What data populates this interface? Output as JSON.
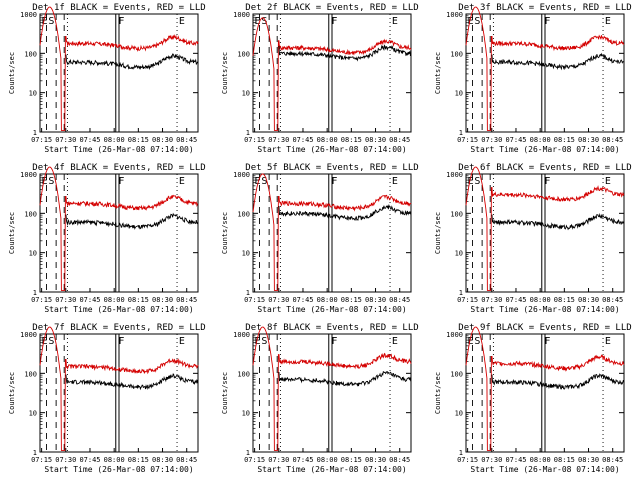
{
  "common": {
    "ylabel": "Counts/sec",
    "xlabel": "Start Time (26-Mar-08 07:14:00)",
    "title_suffix": "BLACK = Events, RED = LLD",
    "x_tick_labels": [
      "07:15",
      "07:30",
      "07:45",
      "08:00",
      "08:15",
      "08:30",
      "08:45"
    ],
    "y_tick_labels": [
      "1",
      "10",
      "100",
      "1000"
    ],
    "marker_labels": [
      "E",
      "S",
      "F",
      "E"
    ],
    "colors": {
      "events": "#000000",
      "lld": "#d40000",
      "axes": "#000000"
    }
  },
  "chart_data": [
    {
      "type": "line",
      "title": "Det 1f BLACK = Events, RED = LLD",
      "xlabel": "Start Time (26-Mar-08 07:14:00)",
      "ylabel": "Counts/sec",
      "x_range_minutes": [
        0,
        98
      ],
      "y_scale": "log",
      "ylim": [
        1,
        1000
      ],
      "series": [
        {
          "name": "BLACK = Events",
          "level": 60,
          "peak": 0
        },
        {
          "name": "RED = LLD",
          "level": 180,
          "peak": 1500
        }
      ]
    },
    {
      "type": "line",
      "title": "Det 2f BLACK = Events, RED = LLD",
      "xlabel": "Start Time (26-Mar-08 07:14:00)",
      "ylabel": "Counts/sec",
      "x_range_minutes": [
        0,
        98
      ],
      "y_scale": "log",
      "ylim": [
        1,
        1000
      ],
      "series": [
        {
          "name": "BLACK = Events",
          "level": 100,
          "peak": 0
        },
        {
          "name": "RED = LLD",
          "level": 140,
          "peak": 800
        }
      ]
    },
    {
      "type": "line",
      "title": "Det 3f BLACK = Events, RED = LLD",
      "xlabel": "Start Time (26-Mar-08 07:14:00)",
      "ylabel": "Counts/sec",
      "x_range_minutes": [
        0,
        98
      ],
      "y_scale": "log",
      "ylim": [
        1,
        1000
      ],
      "series": [
        {
          "name": "BLACK = Events",
          "level": 60,
          "peak": 0
        },
        {
          "name": "RED = LLD",
          "level": 180,
          "peak": 1500
        }
      ]
    },
    {
      "type": "line",
      "title": "Det 4f BLACK = Events, RED = LLD",
      "xlabel": "Start Time (26-Mar-08 07:14:00)",
      "ylabel": "Counts/sec",
      "x_range_minutes": [
        0,
        98
      ],
      "y_scale": "log",
      "ylim": [
        1,
        1000
      ],
      "series": [
        {
          "name": "BLACK = Events",
          "level": 60,
          "peak": 0
        },
        {
          "name": "RED = LLD",
          "level": 180,
          "peak": 1500
        }
      ]
    },
    {
      "type": "line",
      "title": "Det 5f BLACK = Events, RED = LLD",
      "xlabel": "Start Time (26-Mar-08 07:14:00)",
      "ylabel": "Counts/sec",
      "x_range_minutes": [
        0,
        98
      ],
      "y_scale": "log",
      "ylim": [
        1,
        1000
      ],
      "series": [
        {
          "name": "BLACK = Events",
          "level": 100,
          "peak": 0
        },
        {
          "name": "RED = LLD",
          "level": 180,
          "peak": 1000
        }
      ]
    },
    {
      "type": "line",
      "title": "Det 6f BLACK = Events, RED = LLD",
      "xlabel": "Start Time (26-Mar-08 07:14:00)",
      "ylabel": "Counts/sec",
      "x_range_minutes": [
        0,
        98
      ],
      "y_scale": "log",
      "ylim": [
        1,
        1000
      ],
      "series": [
        {
          "name": "BLACK = Events",
          "level": 60,
          "peak": 0
        },
        {
          "name": "RED = LLD",
          "level": 300,
          "peak": 1500
        }
      ]
    },
    {
      "type": "line",
      "title": "Det 7f BLACK = Events, RED = LLD",
      "xlabel": "Start Time (26-Mar-08 07:14:00)",
      "ylabel": "Counts/sec",
      "x_range_minutes": [
        0,
        98
      ],
      "y_scale": "log",
      "ylim": [
        1,
        1000
      ],
      "series": [
        {
          "name": "BLACK = Events",
          "level": 60,
          "peak": 0
        },
        {
          "name": "RED = LLD",
          "level": 150,
          "peak": 1500
        }
      ]
    },
    {
      "type": "line",
      "title": "Det 8f BLACK = Events, RED = LLD",
      "xlabel": "Start Time (26-Mar-08 07:14:00)",
      "ylabel": "Counts/sec",
      "x_range_minutes": [
        0,
        98
      ],
      "y_scale": "log",
      "ylim": [
        1,
        1000
      ],
      "series": [
        {
          "name": "BLACK = Events",
          "level": 70,
          "peak": 0
        },
        {
          "name": "RED = LLD",
          "level": 200,
          "peak": 1500
        }
      ]
    },
    {
      "type": "line",
      "title": "Det 9f BLACK = Events, RED = LLD",
      "xlabel": "Start Time (26-Mar-08 07:14:00)",
      "ylabel": "Counts/sec",
      "x_range_minutes": [
        0,
        98
      ],
      "y_scale": "log",
      "ylim": [
        1,
        1000
      ],
      "series": [
        {
          "name": "BLACK = Events",
          "level": 60,
          "peak": 0
        },
        {
          "name": "RED = LLD",
          "level": 180,
          "peak": 1500
        }
      ]
    }
  ]
}
